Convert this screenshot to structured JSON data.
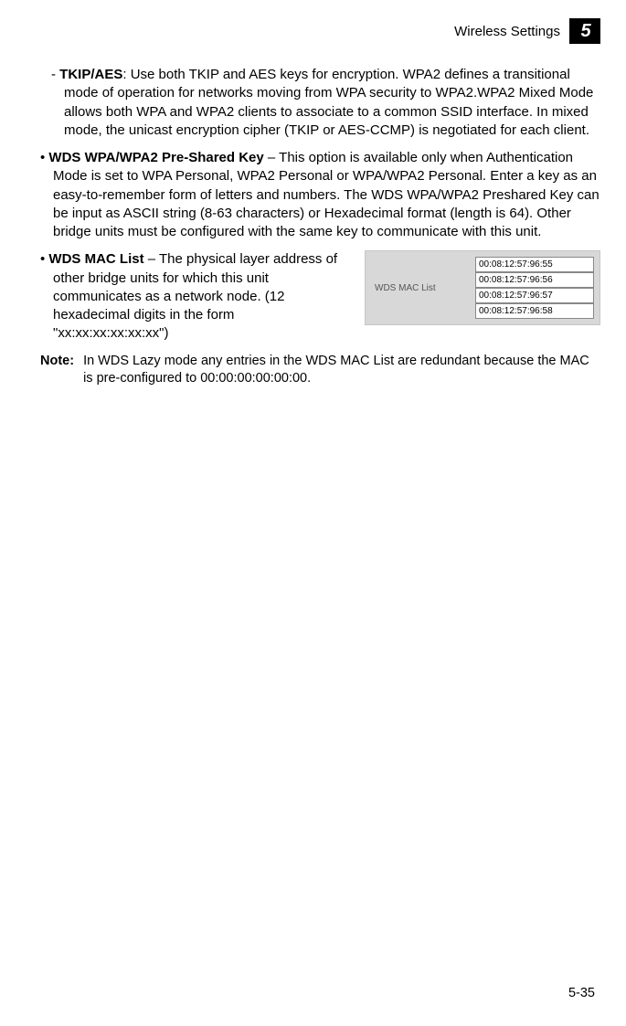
{
  "header": {
    "title": "Wireless Settings",
    "chapter_number": "5"
  },
  "body": {
    "tkip_aes": {
      "term": "TKIP/AES",
      "text": ": Use both TKIP and AES keys for encryption. WPA2 defines a transitional mode of operation for networks moving from WPA security to WPA2.WPA2 Mixed Mode allows both WPA and WPA2 clients to associate to a common SSID interface. In mixed mode, the unicast encryption cipher (TKIP or AES-CCMP) is negotiated for each client."
    },
    "wds_psk": {
      "term": "WDS WPA/WPA2 Pre-Shared Key",
      "text": " – This option is available only when Authentication Mode is set to WPA Personal, WPA2 Personal or WPA/WPA2 Personal. Enter a key as an easy-to-remember form of letters and numbers. The WDS WPA/WPA2 Preshared Key can be input as ASCII string (8-63 characters) or Hexadecimal format (length is 64). Other bridge units must be configured with the same key to communicate with this unit."
    },
    "wds_mac": {
      "term": "WDS MAC List",
      "text": " – The physical layer address of other bridge units for which this unit communicates as a network node. (12 hexadecimal digits in the form \"xx:xx:xx:xx:xx:xx\")"
    },
    "note": {
      "label": "Note:",
      "text": "In WDS Lazy mode any entries in the WDS MAC List are redundant because the MAC is pre-configured to 00:00:00:00:00:00."
    }
  },
  "wds_panel": {
    "label": "WDS MAC List",
    "inputs": [
      "00:08:12:57:96:55",
      "00:08:12:57:96:56",
      "00:08:12:57:96:57",
      "00:08:12:57:96:58"
    ]
  },
  "footer": {
    "page": "5-35"
  }
}
